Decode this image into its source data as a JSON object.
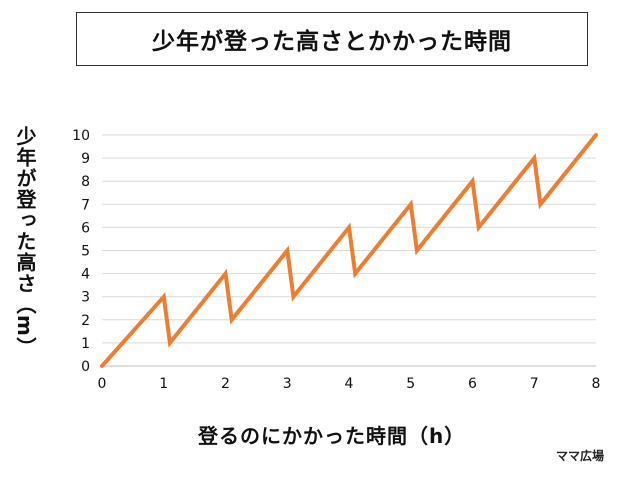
{
  "title": "少年が登った高さとかかった時間",
  "watermark": "ママ広場",
  "colors": {
    "line": "#ED7D31",
    "grid": "#D9D9D9",
    "text": "#111111"
  },
  "chart_data": {
    "type": "line",
    "title": "少年が登った高さとかかった時間",
    "xlabel": "登るのにかかった時間（h）",
    "ylabel": "少年が登った高さ（m）",
    "xlim": [
      0,
      8
    ],
    "ylim": [
      0,
      10
    ],
    "x_ticks": [
      "0",
      "1",
      "2",
      "3",
      "4",
      "5",
      "6",
      "7",
      "8"
    ],
    "y_ticks": [
      "0",
      "1",
      "2",
      "3",
      "4",
      "5",
      "6",
      "7",
      "8",
      "9",
      "10"
    ],
    "grid": "horizontal",
    "legend": "none",
    "series": [
      {
        "x": [
          0,
          1,
          1.1,
          2,
          2.1,
          3,
          3.1,
          4,
          4.1,
          5,
          5.1,
          6,
          6.1,
          7,
          7.1,
          8
        ],
        "y": [
          0,
          3,
          1,
          4,
          2,
          5,
          3,
          6,
          4,
          7,
          5,
          8,
          6,
          9,
          7,
          10
        ]
      }
    ]
  }
}
